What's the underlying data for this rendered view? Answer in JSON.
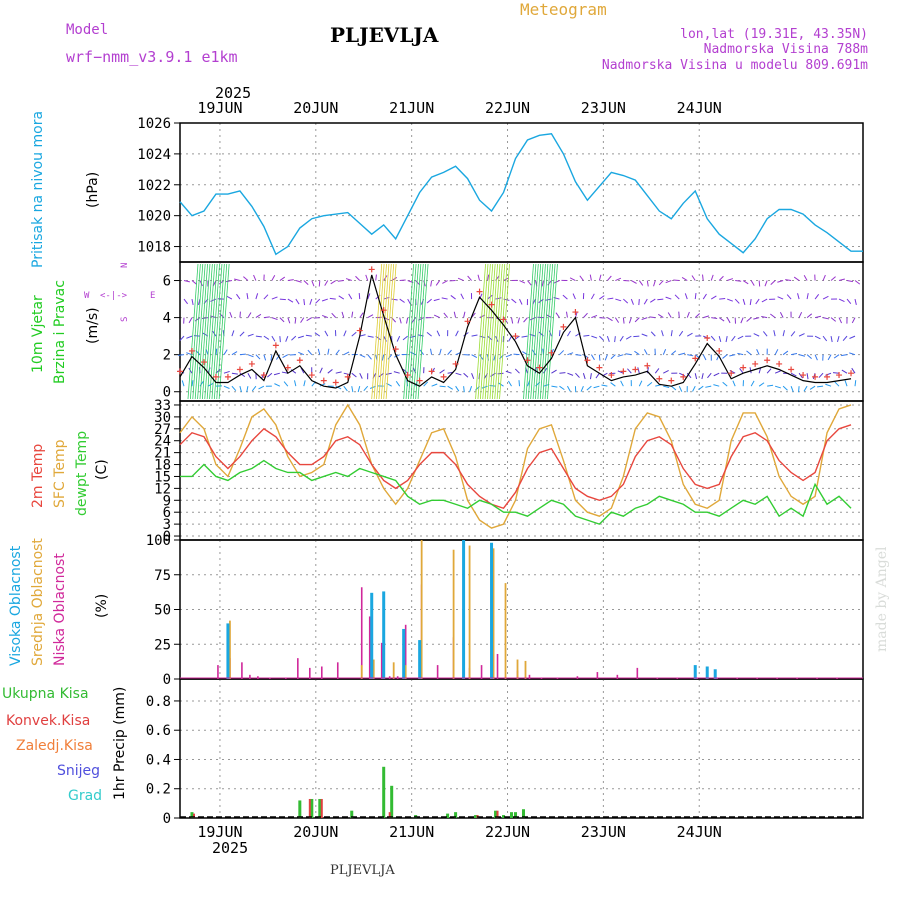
{
  "header": {
    "model_label": "Model",
    "model_name": "wrf−nmm_v3.9.1  e1km",
    "station": "PLJEVLJA",
    "meteogram": "Meteogram",
    "lonlat": "lon,lat (19.31E, 43.35N)",
    "elevation": "Nadmorska Visina 788m",
    "model_elevation": "Nadmorska Visina u modelu 809.691m",
    "year_top": "2025",
    "year_bottom": "2025",
    "station_bottom": "PLJEVLJA",
    "watermark": "made by Angel"
  },
  "days": [
    "19JUN",
    "20JUN",
    "21JUN",
    "22JUN",
    "23JUN",
    "24JUN"
  ],
  "colors": {
    "pressure": "#1aa7e0",
    "temp2m": "#e8473e",
    "sfc": "#e0a83a",
    "dewpt": "#33cc33",
    "high_cloud": "#1aa7e0",
    "mid_cloud": "#e0a83a",
    "low_cloud": "#d0289a",
    "total_precip": "#33bb33",
    "conv_precip": "#e04040",
    "snow": "#5050dd",
    "grad": "#33cccc",
    "wind_label": "#22cc22",
    "purple": "#b33fd0"
  },
  "panels": {
    "pressure": {
      "label": "Pritisak na nivou mora",
      "unit": "(hPa)"
    },
    "wind": {
      "label1": "10m Vjetar",
      "label2": "Brzina i Pravac",
      "unit": "(m/s)",
      "compass_n": "N",
      "compass_s": "S",
      "compass_w": "W",
      "compass_e": "E",
      "compass_arrows": "<-|->"
    },
    "temp": {
      "label_t2m": "2m Temp",
      "label_sfc": "SFC Temp",
      "label_dew": "dewpt Temp",
      "unit": "(C)"
    },
    "cloud": {
      "label_high": "Visoka Oblacnost",
      "label_mid": "Srednja Oblacnost",
      "label_low": "Niska Oblacnost",
      "unit": "(%)"
    },
    "precip": {
      "label_total": "Ukupna Kisa",
      "label_conv": "Konvek.Kisa",
      "label_zaledj": "Zaledj.Kisa",
      "label_snow": "Snijeg",
      "label_grad": "Grad",
      "unit": "1hr Precip (mm)"
    }
  },
  "chart_data": [
    {
      "type": "line",
      "name": "pressure",
      "x_unit": "hours from 18 Jun 2025 14:00",
      "ylim": [
        1017,
        1026
      ],
      "yticks": [
        1018,
        1020,
        1022,
        1024,
        1026
      ],
      "series": [
        {
          "x": [
            0,
            3,
            6,
            9,
            12,
            15,
            18,
            21,
            24,
            27,
            30,
            33,
            36,
            42,
            45,
            48,
            51,
            54,
            57,
            60,
            63,
            66,
            69,
            72,
            75,
            78,
            81,
            84,
            87,
            90,
            93,
            96,
            99,
            102,
            105,
            108,
            111,
            114,
            117,
            120,
            123,
            126,
            129,
            132,
            135,
            138,
            141,
            144,
            147,
            150,
            153,
            156,
            159,
            162,
            165,
            168,
            171
          ],
          "values": [
            1020.9,
            1020.0,
            1020.3,
            1021.4,
            1021.4,
            1021.6,
            1020.6,
            1019.3,
            1017.5,
            1018.0,
            1019.2,
            1019.8,
            1020.0,
            1020.2,
            1019.5,
            1018.8,
            1019.4,
            1018.5,
            1020.0,
            1021.5,
            1022.5,
            1022.8,
            1023.2,
            1022.4,
            1021.0,
            1020.3,
            1021.5,
            1023.7,
            1024.9,
            1025.2,
            1025.3,
            1024.0,
            1022.2,
            1021.0,
            1021.9,
            1022.8,
            1022.6,
            1022.3,
            1021.3,
            1020.3,
            1019.8,
            1020.8,
            1021.6,
            1019.8,
            1018.8,
            1018.2,
            1017.6,
            1018.5,
            1019.8,
            1020.4,
            1020.4,
            1020.1,
            1019.4,
            1018.9,
            1018.3,
            1017.7,
            1017.7
          ]
        }
      ]
    },
    {
      "type": "line",
      "name": "wind",
      "ylim": [
        -0.5,
        7
      ],
      "yticks": [
        0,
        2,
        4,
        6
      ],
      "series": [
        {
          "x": [
            0,
            3,
            6,
            9,
            12,
            15,
            18,
            21,
            24,
            27,
            30,
            33,
            36,
            39,
            42,
            45,
            48,
            51,
            54,
            57,
            60,
            63,
            66,
            69,
            72,
            75,
            78,
            81,
            84,
            87,
            90,
            93,
            96,
            99,
            102,
            105,
            108,
            111,
            114,
            117,
            120,
            123,
            126,
            129,
            132,
            135,
            138,
            141,
            144,
            147,
            150,
            153,
            156,
            159,
            162,
            165,
            168
          ],
          "values": [
            0.8,
            1.9,
            1.3,
            0.5,
            0.5,
            0.9,
            1.2,
            0.6,
            2.2,
            1.0,
            1.4,
            0.6,
            0.3,
            0.2,
            0.5,
            3.0,
            6.3,
            4.1,
            2.0,
            0.6,
            0.3,
            0.8,
            0.5,
            1.2,
            3.5,
            5.1,
            4.4,
            3.6,
            2.7,
            1.4,
            1.0,
            1.8,
            3.2,
            4.0,
            1.4,
            1.0,
            0.6,
            0.8,
            0.9,
            1.1,
            0.4,
            0.3,
            0.5,
            1.5,
            2.6,
            1.9,
            0.7,
            1.0,
            1.2,
            1.4,
            1.2,
            0.9,
            0.6,
            0.5,
            0.5,
            0.6,
            0.7
          ]
        }
      ]
    },
    {
      "type": "line",
      "name": "temperature",
      "ylim": [
        -1,
        34
      ],
      "yticks": [
        0,
        3,
        6,
        9,
        12,
        15,
        18,
        21,
        24,
        27,
        30,
        33
      ],
      "series": [
        {
          "x": [
            0,
            3,
            6,
            9,
            12,
            15,
            18,
            21,
            24,
            27,
            30,
            33,
            36,
            39,
            42,
            45,
            48,
            51,
            54,
            57,
            60,
            63,
            66,
            69,
            72,
            75,
            78,
            81,
            84,
            87,
            90,
            93,
            96,
            99,
            102,
            105,
            108,
            111,
            114,
            117,
            120,
            123,
            126,
            129,
            132,
            135,
            138,
            141,
            144,
            147,
            150,
            153,
            156,
            159,
            162,
            165,
            168
          ],
          "values": [
            23,
            26,
            25,
            20,
            17,
            20,
            24,
            27,
            25,
            21,
            18,
            18,
            20,
            24,
            25,
            23,
            18,
            14,
            12,
            14,
            18,
            21,
            21,
            18,
            13,
            10,
            8,
            7,
            11,
            17,
            21,
            22,
            17,
            12,
            10,
            9,
            10,
            13,
            20,
            24,
            25,
            23,
            17,
            13,
            12,
            13,
            20,
            25,
            26,
            24,
            19,
            16,
            14,
            16,
            24,
            27,
            28
          ]
        },
        {
          "x": [
            0,
            3,
            6,
            9,
            12,
            15,
            18,
            21,
            24,
            27,
            30,
            33,
            36,
            39,
            42,
            45,
            48,
            51,
            54,
            57,
            60,
            63,
            66,
            69,
            72,
            75,
            78,
            81,
            84,
            87,
            90,
            93,
            96,
            99,
            102,
            105,
            108,
            111,
            114,
            117,
            120,
            123,
            126,
            129,
            132,
            135,
            138,
            141,
            144,
            147,
            150,
            153,
            156,
            159,
            162,
            165,
            168
          ],
          "values": [
            26,
            30,
            27,
            18,
            15,
            22,
            30,
            32,
            28,
            20,
            15,
            16,
            18,
            28,
            33,
            28,
            18,
            12,
            8,
            12,
            19,
            26,
            27,
            20,
            9,
            4,
            2,
            3,
            9,
            22,
            27,
            28,
            19,
            9,
            6,
            5,
            7,
            15,
            27,
            31,
            30,
            24,
            13,
            8,
            7,
            9,
            24,
            31,
            31,
            25,
            15,
            10,
            8,
            10,
            26,
            32,
            33
          ]
        },
        {
          "x": [
            0,
            3,
            6,
            9,
            12,
            15,
            18,
            21,
            24,
            27,
            30,
            33,
            36,
            39,
            42,
            45,
            48,
            51,
            54,
            57,
            60,
            63,
            66,
            69,
            72,
            75,
            78,
            81,
            84,
            87,
            90,
            93,
            96,
            99,
            102,
            105,
            108,
            111,
            114,
            117,
            120,
            123,
            126,
            129,
            132,
            135,
            138,
            141,
            144,
            147,
            150,
            153,
            156,
            159,
            162,
            165,
            168
          ],
          "values": [
            15,
            15,
            18,
            15,
            14,
            16,
            17,
            19,
            17,
            16,
            16,
            14,
            15,
            16,
            15,
            17,
            16,
            15,
            14,
            10,
            8,
            9,
            9,
            8,
            7,
            9,
            8,
            6,
            6,
            5,
            7,
            9,
            8,
            5,
            4,
            3,
            6,
            5,
            7,
            8,
            10,
            9,
            8,
            6,
            6,
            5,
            7,
            9,
            8,
            10,
            5,
            7,
            5,
            13,
            8,
            10,
            7
          ]
        }
      ]
    },
    {
      "type": "bar",
      "name": "cloud",
      "ylim": [
        0,
        100
      ],
      "yticks": [
        0,
        25,
        50,
        75,
        100
      ],
      "series": [
        {
          "name": "high",
          "x": [
            12,
            48,
            51,
            56,
            60,
            71,
            78,
            129,
            132,
            134
          ],
          "values": [
            40,
            62,
            63,
            36,
            28,
            100,
            98,
            10,
            9,
            7
          ]
        },
        {
          "name": "mid",
          "x": [
            12,
            45,
            48,
            53,
            56,
            60,
            68,
            72,
            78,
            81,
            84,
            86
          ],
          "values": [
            42,
            10,
            14,
            12,
            10,
            100,
            93,
            96,
            94,
            69,
            14,
            13
          ]
        },
        {
          "name": "low",
          "x": [
            10,
            13,
            16,
            18,
            20,
            23,
            27,
            30,
            33,
            36,
            40,
            46,
            48,
            51,
            53,
            55,
            57,
            61,
            65,
            69,
            73,
            76,
            80,
            85,
            88,
            91,
            95,
            100,
            105,
            110,
            115,
            120,
            125,
            130,
            135,
            140,
            145,
            150,
            155,
            160,
            165
          ],
          "values": [
            10,
            15,
            12,
            3,
            2,
            1,
            1,
            15,
            8,
            9,
            12,
            66,
            45,
            26,
            2,
            2,
            39,
            68,
            10,
            30,
            8,
            10,
            18,
            6,
            3,
            1,
            1,
            2,
            5,
            3,
            8,
            1,
            1,
            1,
            1,
            1,
            1,
            1,
            1,
            1,
            1
          ]
        }
      ]
    },
    {
      "type": "bar",
      "name": "precipitation",
      "ylim": [
        0,
        0.95
      ],
      "yticks": [
        0,
        0.2,
        0.4,
        0.6,
        0.8
      ],
      "series": [
        {
          "name": "total",
          "x": [
            3,
            30,
            33,
            35,
            43,
            51,
            53,
            59,
            67,
            69,
            74,
            79,
            81,
            83,
            84,
            86
          ],
          "values": [
            0.04,
            0.12,
            0.13,
            0.13,
            0.05,
            0.35,
            0.22,
            0.02,
            0.03,
            0.04,
            0.02,
            0.05,
            0.02,
            0.04,
            0.04,
            0.06
          ]
        },
        {
          "name": "convective",
          "x": [
            3,
            32,
            35,
            52,
            74,
            79
          ],
          "values": [
            0.03,
            0.13,
            0.13,
            0.04,
            0.02,
            0.05
          ]
        }
      ]
    }
  ]
}
